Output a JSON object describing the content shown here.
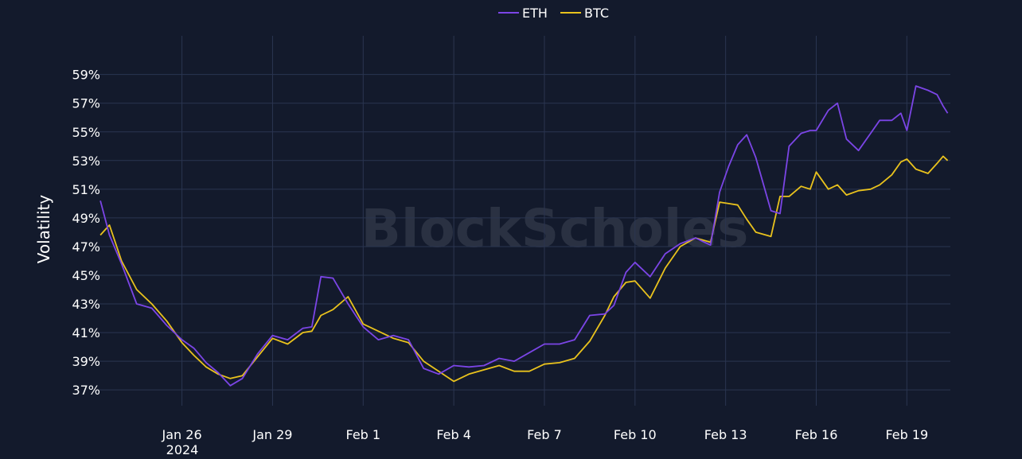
{
  "colors": {
    "background": "#131a2c",
    "grid": "#2a3550",
    "text": "#ffffff",
    "eth": "#7b45e6",
    "btc": "#e9c21d",
    "watermark": "#2a3142"
  },
  "watermark": "BlockScholes",
  "chart_data": {
    "type": "line",
    "ylabel": "Volatility",
    "y_ticks": [
      "37%",
      "39%",
      "41%",
      "43%",
      "45%",
      "47%",
      "49%",
      "51%",
      "53%",
      "55%",
      "57%",
      "59%"
    ],
    "y_tick_values": [
      37,
      39,
      41,
      43,
      45,
      47,
      49,
      51,
      53,
      55,
      57,
      59
    ],
    "ylim": [
      35.9,
      61.7
    ],
    "x_ticks": [
      "Jan 26",
      "Jan 29",
      "Feb 1",
      "Feb 4",
      "Feb 7",
      "Feb 10",
      "Feb 13",
      "Feb 16",
      "Feb 19"
    ],
    "x_tick_values": [
      26,
      29,
      32,
      35,
      38,
      41,
      44,
      47,
      50
    ],
    "x_year_label": "2024",
    "xlim": [
      23.27,
      51.44
    ],
    "x_unit": "day of January 2024 (Feb 1 = 32)",
    "grid": true,
    "legend_position": "top-center",
    "series": [
      {
        "name": "ETH",
        "color": "#7b45e6",
        "x": [
          23.3,
          23.6,
          24.0,
          24.5,
          25.0,
          25.5,
          26.0,
          26.4,
          26.8,
          27.2,
          27.6,
          28.0,
          28.5,
          29.0,
          29.5,
          30.0,
          30.3,
          30.6,
          31.0,
          31.5,
          32.0,
          32.5,
          33.0,
          33.5,
          34.0,
          34.5,
          35.0,
          35.5,
          36.0,
          36.5,
          37.0,
          37.5,
          38.0,
          38.5,
          39.0,
          39.5,
          40.0,
          40.3,
          40.7,
          41.0,
          41.5,
          42.0,
          42.5,
          43.0,
          43.5,
          43.8,
          44.1,
          44.4,
          44.7,
          45.0,
          45.5,
          45.8,
          46.1,
          46.5,
          46.8,
          47.0,
          47.4,
          47.7,
          48.0,
          48.4,
          48.8,
          49.1,
          49.5,
          49.8,
          50.0,
          50.3,
          50.7,
          51.0,
          51.2,
          51.35
        ],
        "y": [
          50.2,
          47.8,
          45.8,
          43.0,
          42.7,
          41.5,
          40.5,
          39.9,
          38.9,
          38.2,
          37.3,
          37.8,
          39.5,
          40.8,
          40.5,
          41.3,
          41.4,
          44.9,
          44.8,
          43.0,
          41.4,
          40.5,
          40.8,
          40.5,
          38.5,
          38.1,
          38.7,
          38.6,
          38.7,
          39.2,
          39.0,
          39.6,
          40.2,
          40.2,
          40.5,
          42.2,
          42.3,
          42.9,
          45.2,
          45.9,
          44.9,
          46.5,
          47.2,
          47.6,
          47.1,
          50.8,
          52.6,
          54.1,
          54.8,
          53.2,
          49.5,
          49.3,
          54.0,
          54.9,
          55.1,
          55.1,
          56.5,
          57.0,
          54.5,
          53.7,
          54.9,
          55.8,
          55.8,
          56.3,
          55.1,
          58.2,
          57.9,
          57.6,
          56.8,
          56.3
        ]
      },
      {
        "name": "BTC",
        "color": "#e9c21d",
        "x": [
          23.3,
          23.6,
          24.0,
          24.5,
          25.0,
          25.5,
          26.0,
          26.4,
          26.8,
          27.2,
          27.6,
          28.0,
          28.5,
          29.0,
          29.5,
          30.0,
          30.3,
          30.6,
          31.0,
          31.5,
          32.0,
          32.5,
          33.0,
          33.5,
          34.0,
          34.5,
          35.0,
          35.5,
          36.0,
          36.5,
          37.0,
          37.5,
          38.0,
          38.5,
          39.0,
          39.5,
          40.0,
          40.3,
          40.7,
          41.0,
          41.5,
          42.0,
          42.5,
          43.0,
          43.5,
          43.8,
          44.1,
          44.4,
          44.7,
          45.0,
          45.5,
          45.8,
          46.1,
          46.5,
          46.8,
          47.0,
          47.4,
          47.7,
          48.0,
          48.4,
          48.8,
          49.1,
          49.5,
          49.8,
          50.0,
          50.3,
          50.7,
          51.0,
          51.2,
          51.35
        ],
        "y": [
          47.8,
          48.5,
          46.0,
          44.0,
          43.0,
          41.8,
          40.3,
          39.4,
          38.6,
          38.1,
          37.8,
          38.0,
          39.3,
          40.6,
          40.2,
          41.0,
          41.1,
          42.2,
          42.6,
          43.5,
          41.6,
          41.1,
          40.6,
          40.3,
          39.0,
          38.3,
          37.6,
          38.1,
          38.4,
          38.7,
          38.3,
          38.3,
          38.8,
          38.9,
          39.2,
          40.4,
          42.2,
          43.5,
          44.5,
          44.6,
          43.4,
          45.5,
          47.0,
          47.6,
          47.3,
          50.1,
          50.0,
          49.9,
          48.9,
          48.0,
          47.7,
          50.5,
          50.5,
          51.2,
          51.0,
          52.2,
          51.0,
          51.3,
          50.6,
          50.9,
          51.0,
          51.3,
          52.0,
          52.9,
          53.1,
          52.4,
          52.1,
          52.8,
          53.3,
          53.0
        ]
      }
    ]
  }
}
